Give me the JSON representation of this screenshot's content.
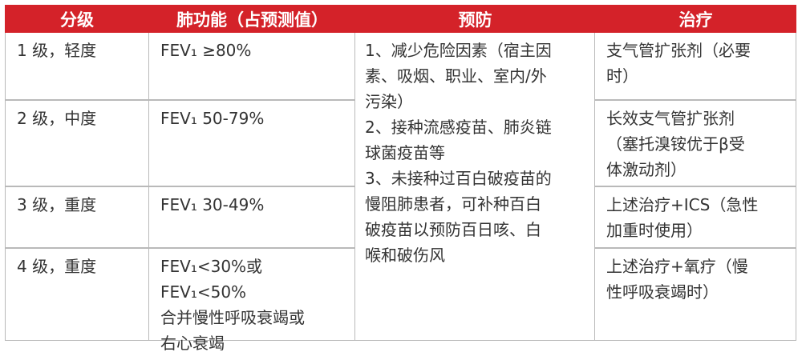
{
  "header": {
    "grade": "分级",
    "lung_function": "肺功能（占预测值）",
    "prevention": "预防",
    "treatment": "治疗"
  },
  "rows": [
    {
      "grade": "1 级，轻度",
      "lung_function": [
        "FEV₁ ≥80%"
      ],
      "treatment": [
        "支气管扩张剂（必要",
        "时）"
      ]
    },
    {
      "grade": "2 级，中度",
      "lung_function": [
        "FEV₁ 50-79%"
      ],
      "treatment": [
        "长效支气管扩张剂",
        "（塞托溴铵优于β受",
        "体激动剂）"
      ]
    },
    {
      "grade": "3 级，重度",
      "lung_function": [
        "FEV₁ 30-49%"
      ],
      "treatment": [
        "上述治疗+ICS（急性",
        "加重时使用）"
      ]
    },
    {
      "grade": "4 级，重度",
      "lung_function": [
        "FEV₁<30%或 FEV₁<50%",
        "合并慢性呼吸衰竭或",
        "右心衰竭"
      ],
      "treatment": [
        "上述治疗+氧疗（慢",
        "性呼吸衰竭时）"
      ]
    }
  ],
  "prevention": [
    "1、减少危险因素（宿主因",
    "素、吸烟、职业、室内/外",
    "污染）",
    "2、接种流感疫苗、肺炎链",
    "球菌疫苗等",
    "3、未接种过百白破疫苗的",
    "慢阻肺患者，可补种百白",
    "破疫苗以预防百日咳、白",
    "喉和破伤风"
  ]
}
